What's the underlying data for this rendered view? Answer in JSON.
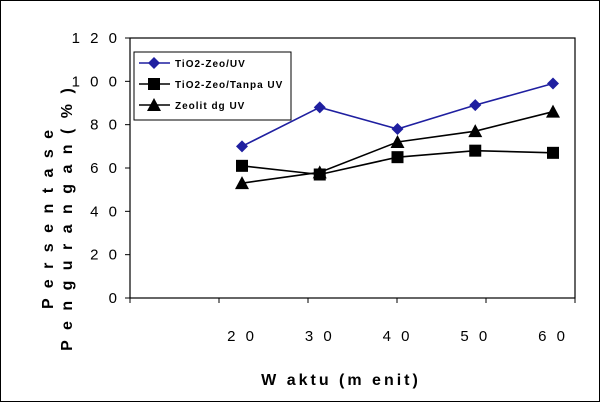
{
  "chart_data": {
    "type": "line",
    "categories": [
      "20",
      "30",
      "40",
      "50",
      "60"
    ],
    "xlabel": "W aktu (m enit)",
    "ylabel_lines": [
      "P e r s e n t a s e",
      "P e n g u r a n g a n  ( % )"
    ],
    "ylim": [
      0,
      120
    ],
    "yticks": [
      "0",
      "2 0",
      "4 0",
      "6 0",
      "8 0",
      "1 0 0",
      "1 2 0"
    ],
    "ytick_values": [
      0,
      20,
      40,
      60,
      80,
      100,
      120
    ],
    "grid": false,
    "legend_position": "top-left",
    "series": [
      {
        "name": "TiO2-Zeo/UV",
        "marker": "diamond",
        "color": "#1f1fa0",
        "values": [
          70,
          88,
          78,
          89,
          99
        ]
      },
      {
        "name": "TiO2-Zeo/Tanpa UV",
        "marker": "square",
        "color": "#000000",
        "values": [
          61,
          57,
          65,
          68,
          67
        ]
      },
      {
        "name": "Zeolit dg UV",
        "marker": "triangle",
        "color": "#000000",
        "values": [
          53,
          58,
          72,
          77,
          86
        ]
      }
    ]
  }
}
